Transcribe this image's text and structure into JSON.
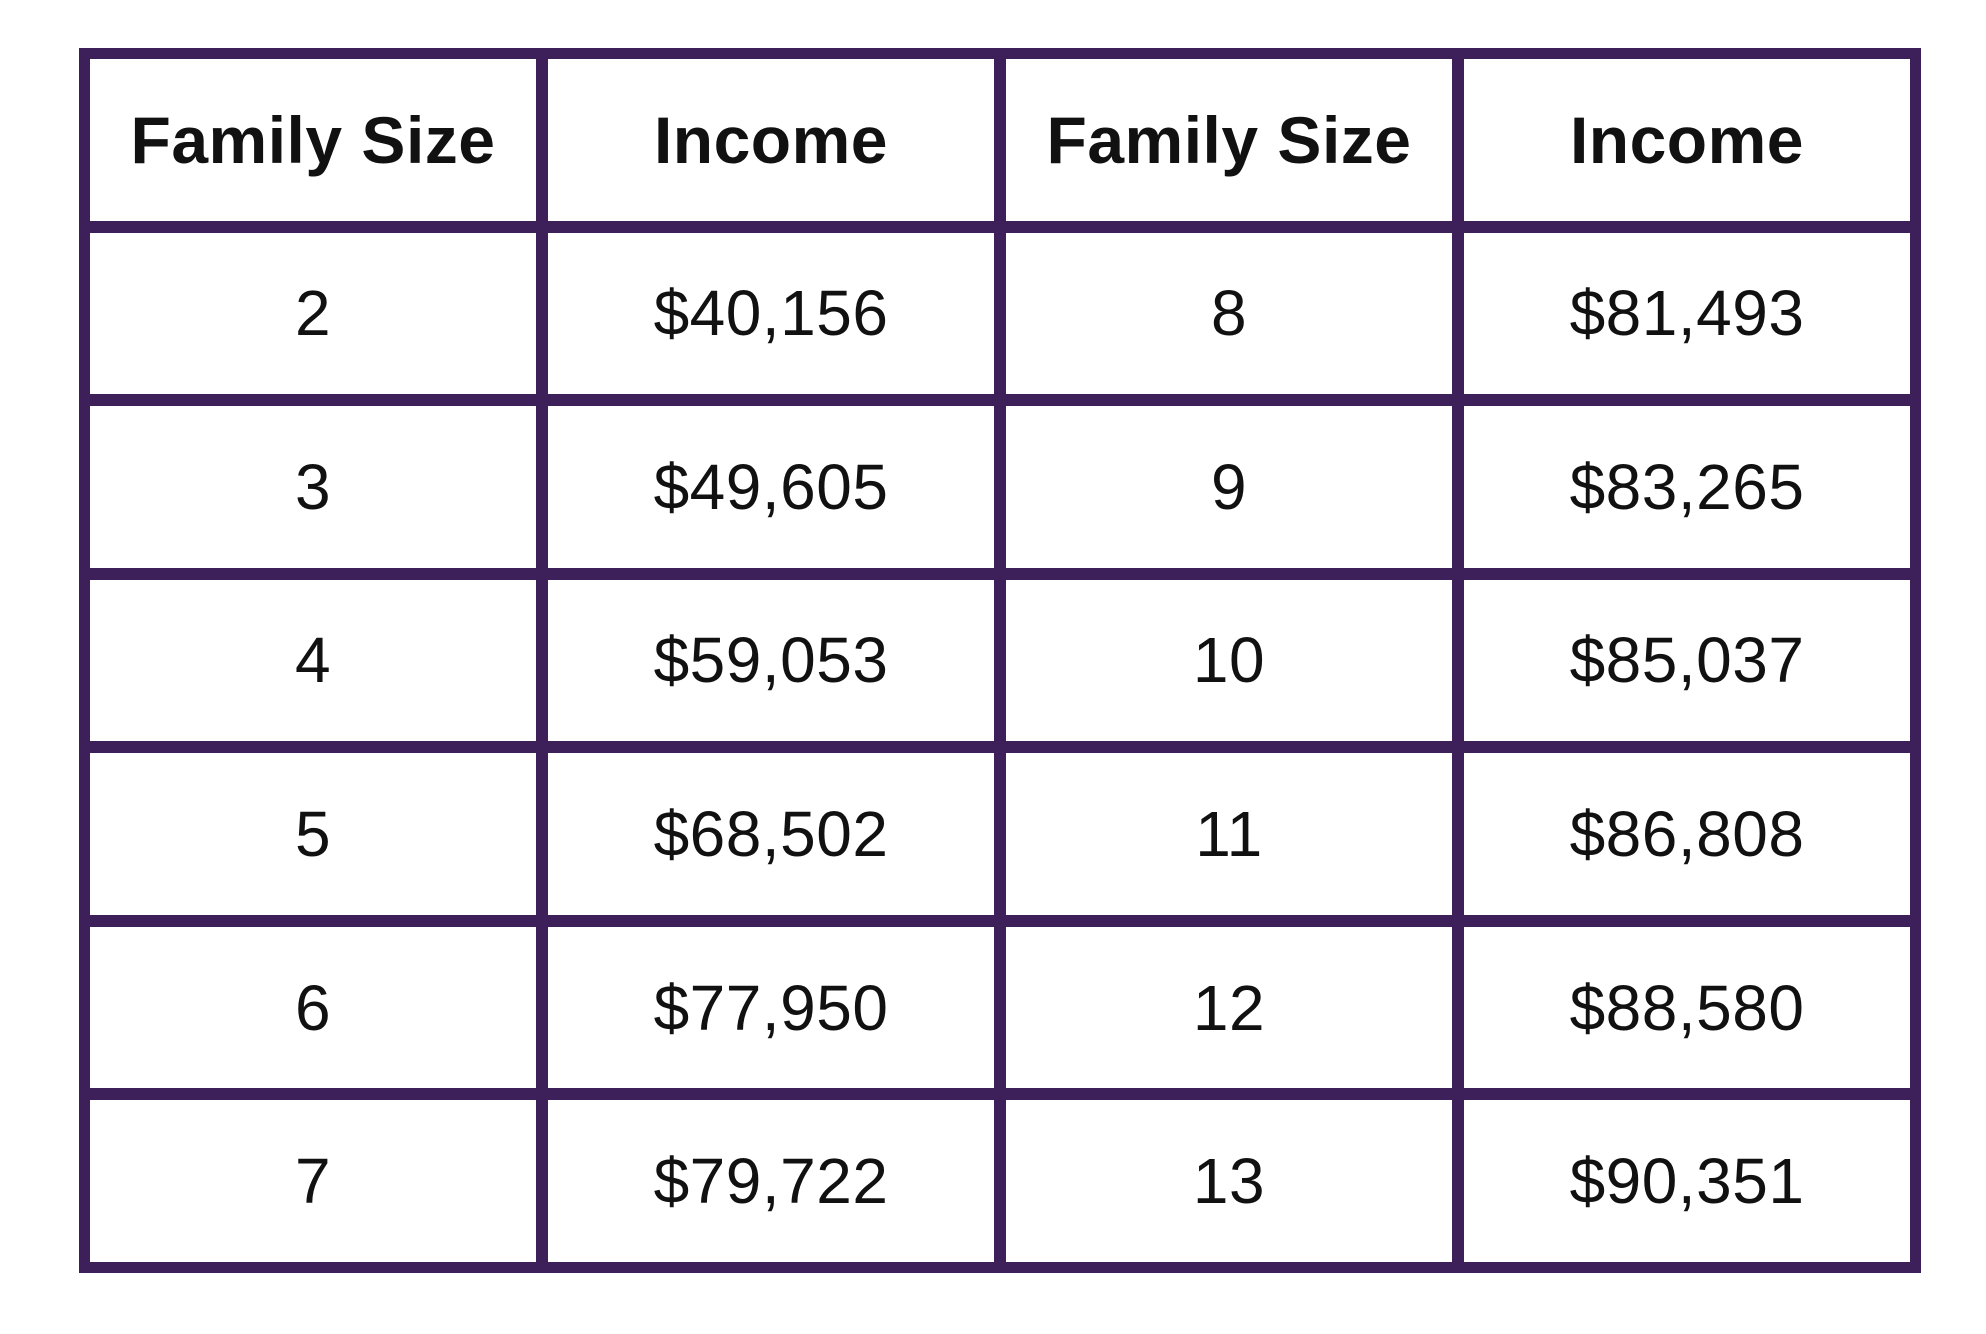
{
  "table": {
    "border_color": "#3d1f5a",
    "headers": [
      "Family Size",
      "Income",
      "Family Size",
      "Income"
    ],
    "rows": [
      [
        "2",
        "$40,156",
        "8",
        "$81,493"
      ],
      [
        "3",
        "$49,605",
        "9",
        "$83,265"
      ],
      [
        "4",
        "$59,053",
        "10",
        "$85,037"
      ],
      [
        "5",
        "$68,502",
        "11",
        "$86,808"
      ],
      [
        "6",
        "$77,950",
        "12",
        "$88,580"
      ],
      [
        "7",
        "$79,722",
        "13",
        "$90,351"
      ]
    ]
  }
}
